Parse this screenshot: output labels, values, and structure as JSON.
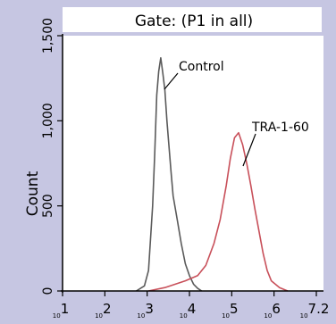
{
  "chart_data": {
    "type": "line",
    "title": "Gate: (P1 in all)",
    "xlabel": "",
    "ylabel": "Count",
    "x_scale": "log",
    "xlim": [
      1,
      7.2
    ],
    "ylim": [
      0,
      1500
    ],
    "yticks": [
      0,
      500,
      1000,
      1500
    ],
    "ytick_labels": [
      "0",
      "500",
      "1,000",
      "1,500"
    ],
    "xticks": [
      {
        "base": "10",
        "exp": "1"
      },
      {
        "base": "10",
        "exp": "2"
      },
      {
        "base": "10",
        "exp": "3"
      },
      {
        "base": "10",
        "exp": "4"
      },
      {
        "base": "10",
        "exp": "5"
      },
      {
        "base": "10",
        "exp": "6"
      },
      {
        "base": "10",
        "exp": "7.2"
      }
    ],
    "grid": false,
    "series": [
      {
        "name": "Control",
        "color": "#5a5a5a",
        "x": [
          2.8,
          3.0,
          3.1,
          3.2,
          3.25,
          3.3,
          3.35,
          3.4,
          3.45,
          3.5,
          3.55,
          3.6,
          3.65,
          3.7,
          3.8,
          3.9,
          4.0,
          4.1,
          4.2,
          4.3,
          4.4
        ],
        "y": [
          0,
          30,
          120,
          500,
          800,
          1150,
          1290,
          1370,
          1280,
          1180,
          1000,
          850,
          700,
          560,
          420,
          280,
          160,
          90,
          40,
          15,
          0
        ]
      },
      {
        "name": "TRA-1-60",
        "color": "#c8505a",
        "x": [
          3.1,
          3.5,
          4.0,
          4.3,
          4.5,
          4.7,
          4.85,
          5.0,
          5.1,
          5.2,
          5.3,
          5.4,
          5.5,
          5.6,
          5.7,
          5.8,
          5.9,
          6.0,
          6.1,
          6.3,
          6.5
        ],
        "y": [
          0,
          20,
          60,
          90,
          150,
          280,
          420,
          620,
          780,
          900,
          930,
          860,
          750,
          620,
          480,
          350,
          220,
          120,
          60,
          20,
          0
        ]
      }
    ],
    "annotations": [
      {
        "text": "Control",
        "series": 0
      },
      {
        "text": "TRA-1-60",
        "series": 1
      }
    ]
  }
}
